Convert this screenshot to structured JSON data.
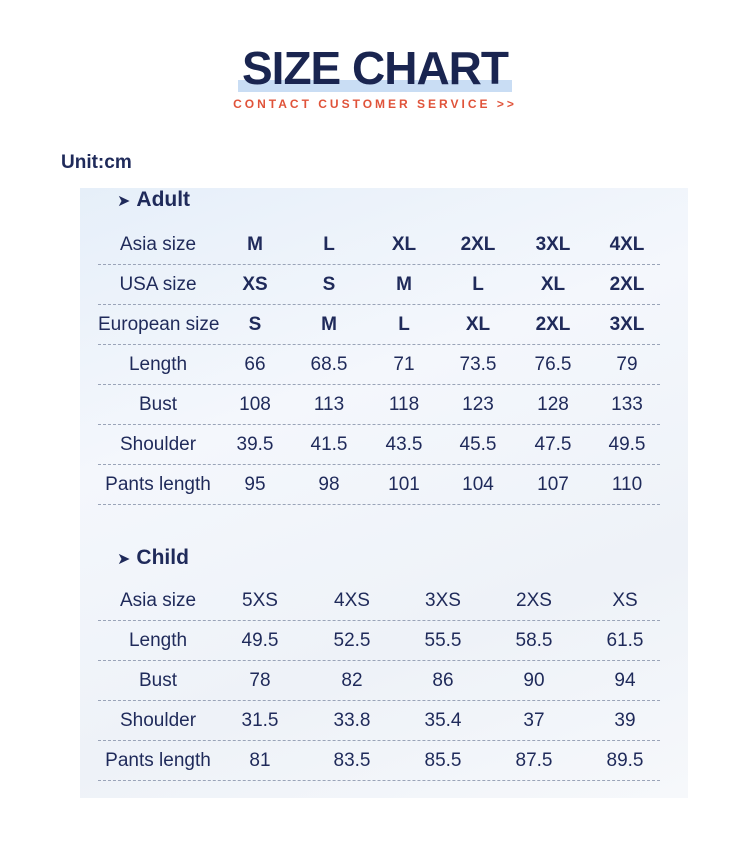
{
  "header": {
    "title": "SIZE CHART",
    "subtitle": "CONTACT CUSTOMER SERVICE >>",
    "unit": "Unit:cm"
  },
  "adult": {
    "title": "Adult",
    "rows": [
      {
        "label": "Asia size",
        "bold": true,
        "values": [
          "M",
          "L",
          "XL",
          "2XL",
          "3XL",
          "4XL"
        ]
      },
      {
        "label": "USA size",
        "bold": true,
        "values": [
          "XS",
          "S",
          "M",
          "L",
          "XL",
          "2XL"
        ]
      },
      {
        "label": "European size",
        "bold": true,
        "values": [
          "S",
          "M",
          "L",
          "XL",
          "2XL",
          "3XL"
        ]
      },
      {
        "label": "Length",
        "bold": false,
        "values": [
          "66",
          "68.5",
          "71",
          "73.5",
          "76.5",
          "79"
        ]
      },
      {
        "label": "Bust",
        "bold": false,
        "values": [
          "108",
          "113",
          "118",
          "123",
          "128",
          "133"
        ]
      },
      {
        "label": "Shoulder",
        "bold": false,
        "values": [
          "39.5",
          "41.5",
          "43.5",
          "45.5",
          "47.5",
          "49.5"
        ]
      },
      {
        "label": "Pants length",
        "bold": false,
        "values": [
          "95",
          "98",
          "101",
          "104",
          "107",
          "110"
        ]
      }
    ]
  },
  "child": {
    "title": "Child",
    "rows": [
      {
        "label": "Asia size",
        "bold": false,
        "values": [
          "5XS",
          "4XS",
          "3XS",
          "2XS",
          "XS"
        ]
      },
      {
        "label": "Length",
        "bold": false,
        "values": [
          "49.5",
          "52.5",
          "55.5",
          "58.5",
          "61.5"
        ]
      },
      {
        "label": "Bust",
        "bold": false,
        "values": [
          "78",
          "82",
          "86",
          "90",
          "94"
        ]
      },
      {
        "label": "Shoulder",
        "bold": false,
        "values": [
          "31.5",
          "33.8",
          "35.4",
          "37",
          "39"
        ]
      },
      {
        "label": "Pants length",
        "bold": false,
        "values": [
          "81",
          "83.5",
          "85.5",
          "87.5",
          "89.5"
        ]
      }
    ]
  }
}
